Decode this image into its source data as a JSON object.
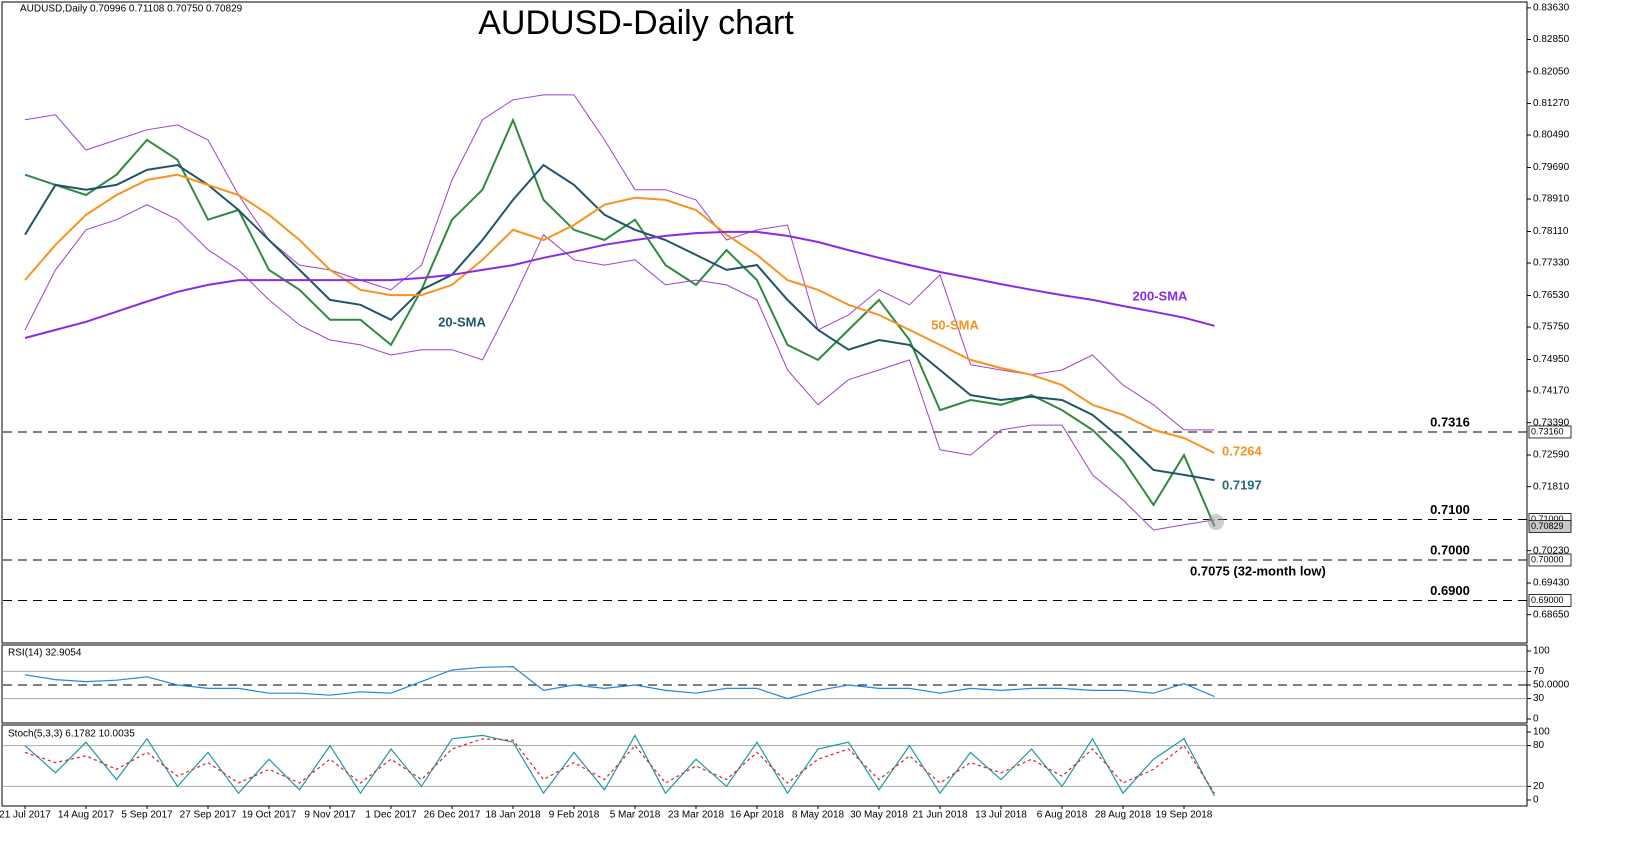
{
  "chart_data": [
    {
      "type": "line",
      "title": "AUDUSD-Daily chart",
      "subtitle": "AUDUSD,Daily  0.70996 0.71108 0.70750 0.70829",
      "categories": [
        "21 Jul 2017",
        null,
        "14 Aug 2017",
        null,
        "5 Sep 2017",
        null,
        "27 Sep 2017",
        null,
        "19 Oct 2017",
        null,
        "9 Nov 2017",
        null,
        "1 Dec 2017",
        null,
        "26 Dec 2017",
        null,
        "18 Jan 2018",
        null,
        "9 Feb 2018",
        null,
        "5 Mar 2018",
        null,
        "23 Mar 2018",
        null,
        "16 Apr 2018",
        null,
        "8 May 2018",
        null,
        "30 May 2018",
        null,
        "21 Jun 2018",
        null,
        "13 Jul 2018",
        null,
        "6 Aug 2018",
        null,
        "28 Aug 2018",
        null,
        "19 Sep 2018",
        null,
        null
      ],
      "ylim": [
        0.6795,
        0.8375
      ],
      "yticks": [
        {
          "value": 0.8363,
          "label": "0.83630"
        },
        {
          "value": 0.8285,
          "label": "0.82850"
        },
        {
          "value": 0.8205,
          "label": "0.82050"
        },
        {
          "value": 0.8127,
          "label": "0.81270"
        },
        {
          "value": 0.8049,
          "label": "0.80490"
        },
        {
          "value": 0.7969,
          "label": "0.79690"
        },
        {
          "value": 0.7891,
          "label": "0.78910"
        },
        {
          "value": 0.7811,
          "label": "0.78110"
        },
        {
          "value": 0.7733,
          "label": "0.77330"
        },
        {
          "value": 0.7653,
          "label": "0.76530"
        },
        {
          "value": 0.7575,
          "label": "0.75750"
        },
        {
          "value": 0.7495,
          "label": "0.74950"
        },
        {
          "value": 0.7417,
          "label": "0.74170"
        },
        {
          "value": 0.7339,
          "label": "0.73390"
        },
        {
          "value": 0.7259,
          "label": "0.72590"
        },
        {
          "value": 0.7181,
          "label": "0.71810"
        },
        {
          "value": 0.7023,
          "label": "0.70230"
        },
        {
          "value": 0.6943,
          "label": "0.69430"
        },
        {
          "value": 0.6865,
          "label": "0.68650"
        }
      ],
      "levels": [
        {
          "value": 0.7316,
          "label": "0.7316"
        },
        {
          "value": 0.71,
          "label": "0.7100"
        },
        {
          "value": 0.7,
          "label": "0.7000"
        },
        {
          "value": 0.69,
          "label": "0.6900"
        }
      ],
      "price_labels": [
        {
          "value": 0.7316,
          "label": "0.73160",
          "fill": "#ffffff"
        },
        {
          "value": 0.71,
          "label": "0.71000",
          "fill": "#ffffff"
        },
        {
          "value": 0.70829,
          "label": "0.70829",
          "fill": "#c8c8c8"
        },
        {
          "value": 0.7,
          "label": "0.70000",
          "fill": "#ffffff"
        },
        {
          "value": 0.69,
          "label": "0.69000",
          "fill": "#ffffff"
        }
      ],
      "series": [
        {
          "color": "#2e8b3e",
          "values": [
            0.7951,
            0.7926,
            0.7901,
            0.7951,
            0.8037,
            0.7988,
            0.784,
            0.7864,
            0.7716,
            0.7667,
            0.7593,
            0.7593,
            0.7531,
            0.7667,
            0.784,
            0.7914,
            0.8086,
            0.7889,
            0.7815,
            0.779,
            0.784,
            0.7728,
            0.7679,
            0.7765,
            0.7691,
            0.7531,
            0.7494,
            0.7568,
            0.7642,
            0.7543,
            0.737,
            0.7395,
            0.7383,
            0.7407,
            0.737,
            0.7321,
            0.7247,
            0.7136,
            0.7259,
            0.7083,
            null
          ]
        },
        {
          "color": "#a23fcf",
          "values": [
            0.8087,
            0.8099,
            0.8012,
            0.8037,
            0.8062,
            0.8074,
            0.8037,
            0.7901,
            0.779,
            0.7728,
            0.7716,
            0.7691,
            0.7667,
            0.7728,
            0.7938,
            0.8087,
            0.8136,
            0.8148,
            0.8148,
            0.8037,
            0.7914,
            0.7914,
            0.7889,
            0.779,
            0.7815,
            0.7827,
            0.7568,
            0.7605,
            0.7667,
            0.763,
            0.7704,
            0.7482,
            0.7469,
            0.7457,
            0.7469,
            0.7506,
            0.7432,
            0.7383,
            0.7321,
            0.7321,
            null
          ]
        },
        {
          "color": "#a23fcf",
          "values": [
            0.7568,
            0.7716,
            0.7815,
            0.784,
            0.7877,
            0.784,
            0.7766,
            0.7716,
            0.7642,
            0.758,
            0.7543,
            0.7531,
            0.7506,
            0.7519,
            0.7519,
            0.7494,
            0.7642,
            0.7803,
            0.7741,
            0.7728,
            0.7741,
            0.7679,
            0.7691,
            0.7679,
            0.7642,
            0.7469,
            0.7383,
            0.7445,
            0.7469,
            0.7494,
            0.7272,
            0.7259,
            0.7321,
            0.7333,
            0.7333,
            0.721,
            0.7148,
            0.7074,
            0.7087,
            0.7099,
            null
          ]
        },
        {
          "name": "20-SMA",
          "color": "#1f5566",
          "values": [
            0.7803,
            0.7926,
            0.7914,
            0.7926,
            0.7963,
            0.7975,
            0.7926,
            0.7864,
            0.779,
            0.7716,
            0.7642,
            0.763,
            0.7593,
            0.7667,
            0.7704,
            0.779,
            0.7889,
            0.7975,
            0.7926,
            0.7852,
            0.7815,
            0.779,
            0.7753,
            0.7716,
            0.7728,
            0.7642,
            0.7568,
            0.7519,
            0.7543,
            0.7531,
            0.7469,
            0.7407,
            0.7395,
            0.7403,
            0.7395,
            0.7358,
            0.7296,
            0.7222,
            0.721,
            0.7197,
            null
          ]
        },
        {
          "name": "50-SMA",
          "color": "#f7931e",
          "values": [
            0.7691,
            0.7778,
            0.7852,
            0.7901,
            0.7938,
            0.7951,
            0.7926,
            0.7901,
            0.7852,
            0.779,
            0.7716,
            0.7667,
            0.7654,
            0.7654,
            0.7679,
            0.7741,
            0.7815,
            0.779,
            0.7827,
            0.7877,
            0.7894,
            0.7889,
            0.7864,
            0.7803,
            0.7753,
            0.7691,
            0.7667,
            0.763,
            0.7605,
            0.7568,
            0.7531,
            0.7494,
            0.7474,
            0.7457,
            0.7432,
            0.7383,
            0.7358,
            0.7321,
            0.7301,
            0.7264,
            null
          ]
        },
        {
          "name": "200-SMA",
          "color": "#8a2be2",
          "values": [
            0.7548,
            0.7568,
            0.7588,
            0.7613,
            0.7638,
            0.7662,
            0.7679,
            0.7691,
            0.7691,
            0.7691,
            0.7691,
            0.7691,
            0.7691,
            0.7696,
            0.7704,
            0.7716,
            0.7728,
            0.7746,
            0.7761,
            0.7778,
            0.779,
            0.78,
            0.7807,
            0.781,
            0.781,
            0.78,
            0.7785,
            0.7765,
            0.7746,
            0.7728,
            0.7711,
            0.7696,
            0.7681,
            0.7667,
            0.7654,
            0.7642,
            0.7627,
            0.7613,
            0.7598,
            0.7578,
            null
          ]
        }
      ],
      "annotations": [
        {
          "text": "0.7264",
          "color": "#f7931e"
        },
        {
          "text": "0.7197",
          "color": "#1f6e78"
        },
        {
          "text": "0.7075 (32-month low)",
          "color": "#000000"
        }
      ]
    },
    {
      "type": "line",
      "subtitle": "RSI(14) 32.9054",
      "ylim": [
        0,
        100
      ],
      "yticks": [
        0,
        30,
        {
          "value": 50,
          "label": "50.0000"
        },
        70,
        100
      ],
      "levels": [
        30,
        50,
        70
      ],
      "series": [
        {
          "color": "#1e88e5",
          "values": [
            65,
            58,
            55,
            57,
            62,
            50,
            45,
            45,
            38,
            38,
            35,
            40,
            38,
            55,
            72,
            76,
            77,
            42,
            50,
            45,
            50,
            42,
            38,
            45,
            45,
            30,
            42,
            50,
            45,
            45,
            38,
            45,
            42,
            45,
            45,
            42,
            42,
            38,
            52,
            32.9,
            null
          ]
        }
      ]
    },
    {
      "type": "line",
      "subtitle": "Stoch(5,3,3) 6.1782 10.0035",
      "ylim": [
        0,
        100
      ],
      "yticks": [
        0,
        20,
        80,
        100
      ],
      "levels": [
        20,
        80
      ],
      "series": [
        {
          "color": "#1b9aa8",
          "values": [
            80,
            40,
            85,
            30,
            90,
            20,
            70,
            10,
            60,
            15,
            80,
            10,
            75,
            20,
            90,
            95,
            85,
            10,
            70,
            15,
            95,
            10,
            60,
            20,
            85,
            10,
            75,
            85,
            15,
            80,
            10,
            70,
            30,
            75,
            20,
            90,
            10,
            60,
            90,
            6.2,
            null
          ]
        },
        {
          "color": "#e02020",
          "dashed": true,
          "values": [
            70,
            55,
            65,
            45,
            70,
            35,
            55,
            25,
            45,
            25,
            60,
            25,
            60,
            30,
            75,
            90,
            88,
            30,
            55,
            30,
            80,
            25,
            50,
            30,
            70,
            25,
            60,
            75,
            30,
            65,
            25,
            55,
            40,
            60,
            35,
            75,
            25,
            45,
            80,
            10,
            null
          ]
        }
      ]
    }
  ]
}
